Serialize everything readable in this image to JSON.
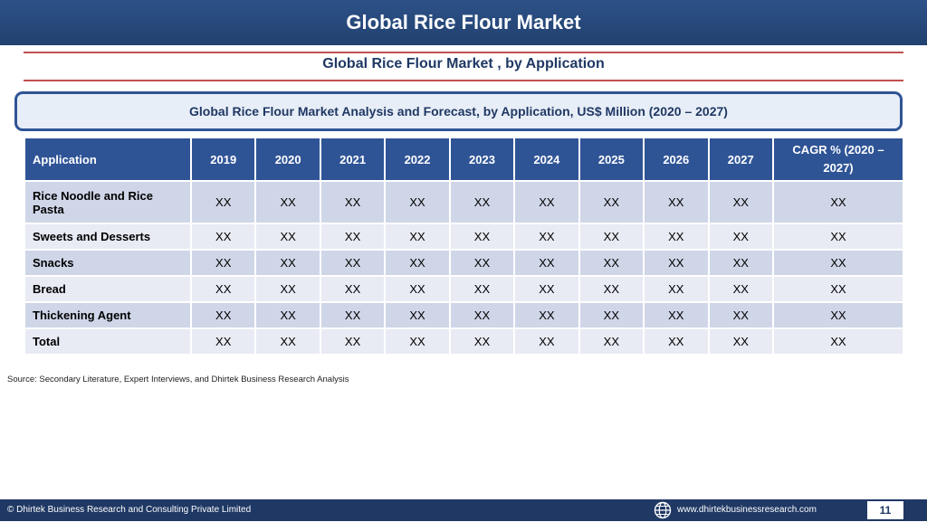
{
  "header": {
    "title": "Global Rice Flour Market"
  },
  "subtitle": "Global Rice Flour Market , by Application",
  "banner": "Global Rice Flour Market  Analysis and Forecast, by Application, US$ Million (2020 – 2027)",
  "table": {
    "columns": [
      "Application",
      "2019",
      "2020",
      "2021",
      "2022",
      "2023",
      "2024",
      "2025",
      "2026",
      "2027",
      "CAGR % (2020 – 2027)"
    ],
    "rows": [
      {
        "label": "Rice Noodle and Rice Pasta",
        "values": [
          "XX",
          "XX",
          "XX",
          "XX",
          "XX",
          "XX",
          "XX",
          "XX",
          "XX",
          "XX"
        ]
      },
      {
        "label": "Sweets and Desserts",
        "values": [
          "XX",
          "XX",
          "XX",
          "XX",
          "XX",
          "XX",
          "XX",
          "XX",
          "XX",
          "XX"
        ]
      },
      {
        "label": "Snacks",
        "values": [
          "XX",
          "XX",
          "XX",
          "XX",
          "XX",
          "XX",
          "XX",
          "XX",
          "XX",
          "XX"
        ]
      },
      {
        "label": "Bread",
        "values": [
          "XX",
          "XX",
          "XX",
          "XX",
          "XX",
          "XX",
          "XX",
          "XX",
          "XX",
          "XX"
        ]
      },
      {
        "label": "Thickening Agent",
        "values": [
          "XX",
          "XX",
          "XX",
          "XX",
          "XX",
          "XX",
          "XX",
          "XX",
          "XX",
          "XX"
        ]
      },
      {
        "label": "Total",
        "values": [
          "XX",
          "XX",
          "XX",
          "XX",
          "XX",
          "XX",
          "XX",
          "XX",
          "XX",
          "XX"
        ]
      }
    ]
  },
  "source": "Source: Secondary Literature, Expert Interviews, and Dhirtek Business Research Analysis",
  "footer": {
    "copyright": "© Dhirtek Business Research and Consulting Private Limited",
    "website": "www.dhirtekbusinessresearch.com",
    "page_number": "11",
    "globe_icon": "globe-icon"
  },
  "colors": {
    "header_blue": "#2f5496",
    "accent_red": "#c0504d",
    "footer_blue": "#1f3864"
  }
}
